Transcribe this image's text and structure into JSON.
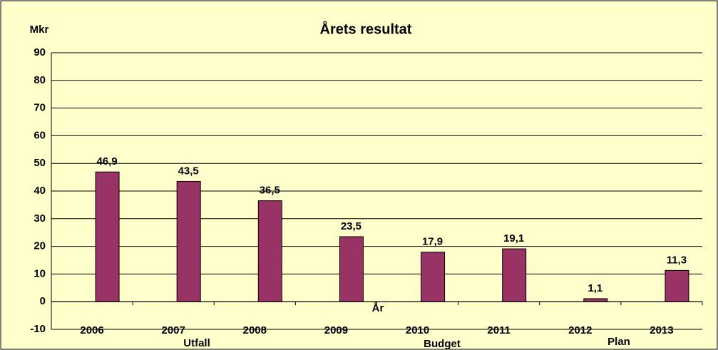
{
  "chart_data": {
    "type": "bar",
    "title": "Årets resultat",
    "y_unit": "Mkr",
    "x_label": "År",
    "categories": [
      "2006",
      "2007",
      "2008",
      "2009",
      "2010",
      "2011",
      "2012",
      "2013"
    ],
    "values": [
      46.9,
      43.5,
      36.5,
      23.5,
      17.9,
      19.1,
      1.1,
      11.3
    ],
    "value_labels": [
      "46,9",
      "43,5",
      "36,5",
      "23,5",
      "17,9",
      "19,1",
      "1,1",
      "11,3"
    ],
    "color": "#993366",
    "ylim": [
      -10,
      90
    ],
    "yticks": [
      -10,
      0,
      10,
      20,
      30,
      40,
      50,
      60,
      70,
      80,
      90
    ],
    "grid": true,
    "annotations": [
      "Utfall",
      "Budget",
      "Plan"
    ]
  }
}
